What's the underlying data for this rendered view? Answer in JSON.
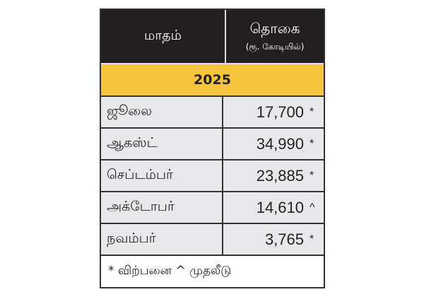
{
  "header": {
    "month_col": "மாதம்",
    "amount_col": "தொகை",
    "amount_unit": "(ரூ. கோடியில்)"
  },
  "year": "2025",
  "rows": [
    {
      "month": "ஜூலை",
      "value": "17,700",
      "mark": "*"
    },
    {
      "month": "ஆகஸ்ட்",
      "value": "34,990",
      "mark": "*"
    },
    {
      "month": "செப்டம்பர்",
      "value": "23,885",
      "mark": "*"
    },
    {
      "month": "அக்டோபர்",
      "value": "14,610",
      "mark": "^"
    },
    {
      "month": "நவம்பர்",
      "value": "3,765",
      "mark": "*"
    }
  ],
  "footer": "* விற்பனை ^ முதலீடு",
  "colors": {
    "header_bg": "#231f20",
    "year_bg": "#f6c43d",
    "row_bg": "#e8e8ea"
  }
}
